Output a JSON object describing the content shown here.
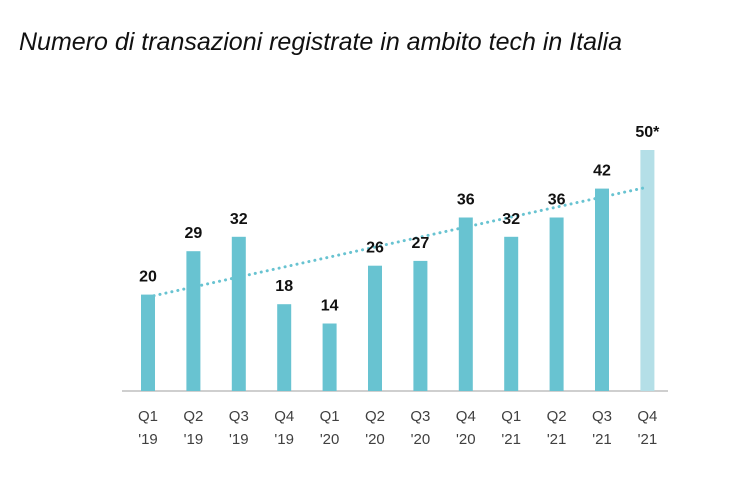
{
  "title": "Numero di transazioni registrate in ambito tech in Italia",
  "colors": {
    "bar": "#68c3d1",
    "bar_estimate": "#b4dfe7",
    "trendline": "#68c3d1",
    "axis": "#bfbfbf",
    "text": "#111111",
    "tick_text": "#404040"
  },
  "chart_data": {
    "type": "bar",
    "title": "Numero di transazioni registrate in ambito tech in Italia",
    "categories": [
      [
        "Q1",
        "'19"
      ],
      [
        "Q2",
        "'19"
      ],
      [
        "Q3",
        "'19"
      ],
      [
        "Q4",
        "'19"
      ],
      [
        "Q1",
        "'20"
      ],
      [
        "Q2",
        "'20"
      ],
      [
        "Q3",
        "'20"
      ],
      [
        "Q4",
        "'20"
      ],
      [
        "Q1",
        "'21"
      ],
      [
        "Q2",
        "'21"
      ],
      [
        "Q3",
        "'21"
      ],
      [
        "Q4",
        "'21"
      ]
    ],
    "values": [
      20,
      29,
      32,
      18,
      14,
      26,
      27,
      36,
      32,
      36,
      42,
      50
    ],
    "data_labels": [
      "20",
      "29",
      "32",
      "18",
      "14",
      "26",
      "27",
      "36",
      "32",
      "36",
      "42",
      "50*"
    ],
    "estimated_index": 11,
    "trendline": {
      "style": "dotted",
      "from_value": 19.5,
      "to_value": 42.3
    },
    "ylim": [
      0,
      50
    ],
    "grid": false,
    "legend": "none"
  }
}
